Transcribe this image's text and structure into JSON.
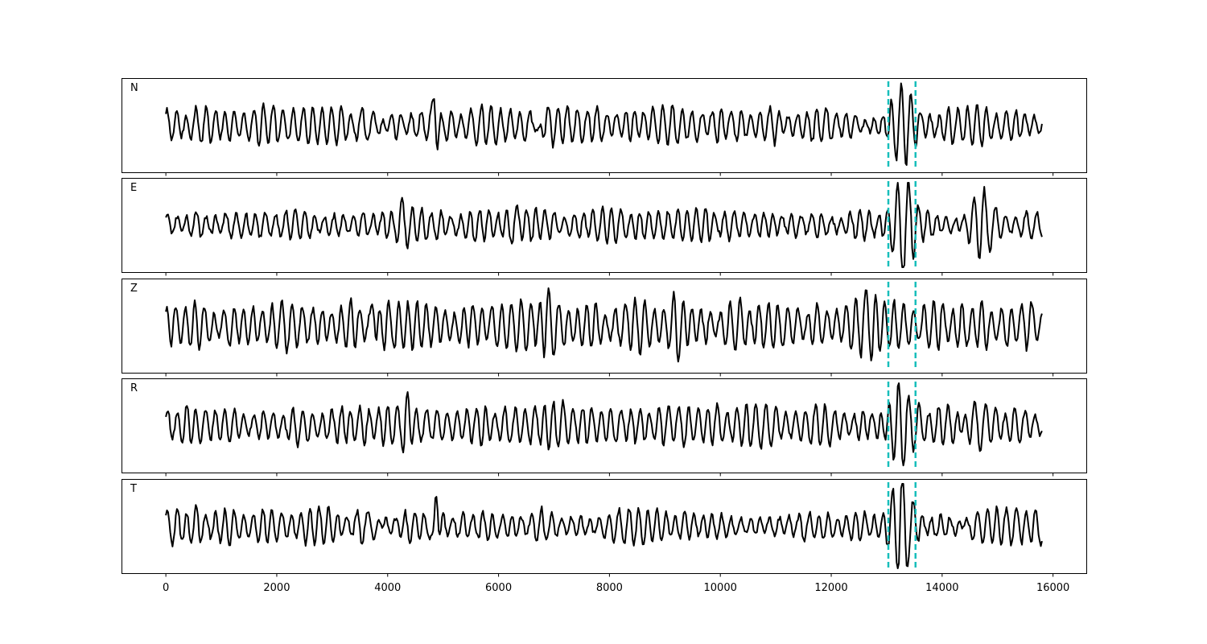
{
  "chart_data": {
    "type": "line",
    "title": "",
    "xlabel": "",
    "ylabel": "",
    "xlim": [
      -800,
      16600
    ],
    "x_ticks": [
      0,
      2000,
      4000,
      6000,
      8000,
      10000,
      12000,
      14000,
      16000
    ],
    "x_tick_labels": [
      "0",
      "2000",
      "4000",
      "6000",
      "8000",
      "10000",
      "12000",
      "14000",
      "16000"
    ],
    "grid": false,
    "legend": "none",
    "sample_count": 15800,
    "pick_lines": [
      13030,
      13520
    ],
    "colors": {
      "trace": "#000000",
      "pick": "#17bebb"
    },
    "series": [
      {
        "name": "N",
        "seed": 11,
        "noise_amp": 0.38,
        "bursts": [
          {
            "x": 3800,
            "width": 200,
            "amp": 0.45
          },
          {
            "x": 4860,
            "width": 60,
            "amp": 0.95
          },
          {
            "x": 6700,
            "width": 110,
            "amp": 0.55
          },
          {
            "x": 13250,
            "width": 260,
            "amp": 0.9
          }
        ]
      },
      {
        "name": "E",
        "seed": 23,
        "noise_amp": 0.32,
        "bursts": [
          {
            "x": 4300,
            "width": 120,
            "amp": 0.35
          },
          {
            "x": 6200,
            "width": 150,
            "amp": 0.35
          },
          {
            "x": 13300,
            "width": 240,
            "amp": 1.05
          },
          {
            "x": 14700,
            "width": 250,
            "amp": 0.55
          }
        ]
      },
      {
        "name": "Z",
        "seed": 37,
        "noise_amp": 0.5,
        "bursts": [
          {
            "x": 3750,
            "width": 80,
            "amp": 0.55
          },
          {
            "x": 6400,
            "width": 200,
            "amp": 0.45
          },
          {
            "x": 6900,
            "width": 120,
            "amp": 0.55
          },
          {
            "x": 9250,
            "width": 140,
            "amp": 0.5
          },
          {
            "x": 12700,
            "width": 250,
            "amp": 0.5
          },
          {
            "x": 15700,
            "width": 120,
            "amp": 0.4
          }
        ]
      },
      {
        "name": "R",
        "seed": 51,
        "noise_amp": 0.42,
        "bursts": [
          {
            "x": 4350,
            "width": 100,
            "amp": 0.55
          },
          {
            "x": 13200,
            "width": 220,
            "amp": 0.95
          },
          {
            "x": 14600,
            "width": 220,
            "amp": 0.55
          }
        ]
      },
      {
        "name": "T",
        "seed": 67,
        "noise_amp": 0.36,
        "bursts": [
          {
            "x": 3750,
            "width": 160,
            "amp": 0.45
          },
          {
            "x": 4860,
            "width": 60,
            "amp": 0.95
          },
          {
            "x": 13250,
            "width": 230,
            "amp": 1.05
          },
          {
            "x": 14400,
            "width": 150,
            "amp": 0.4
          }
        ]
      }
    ]
  }
}
